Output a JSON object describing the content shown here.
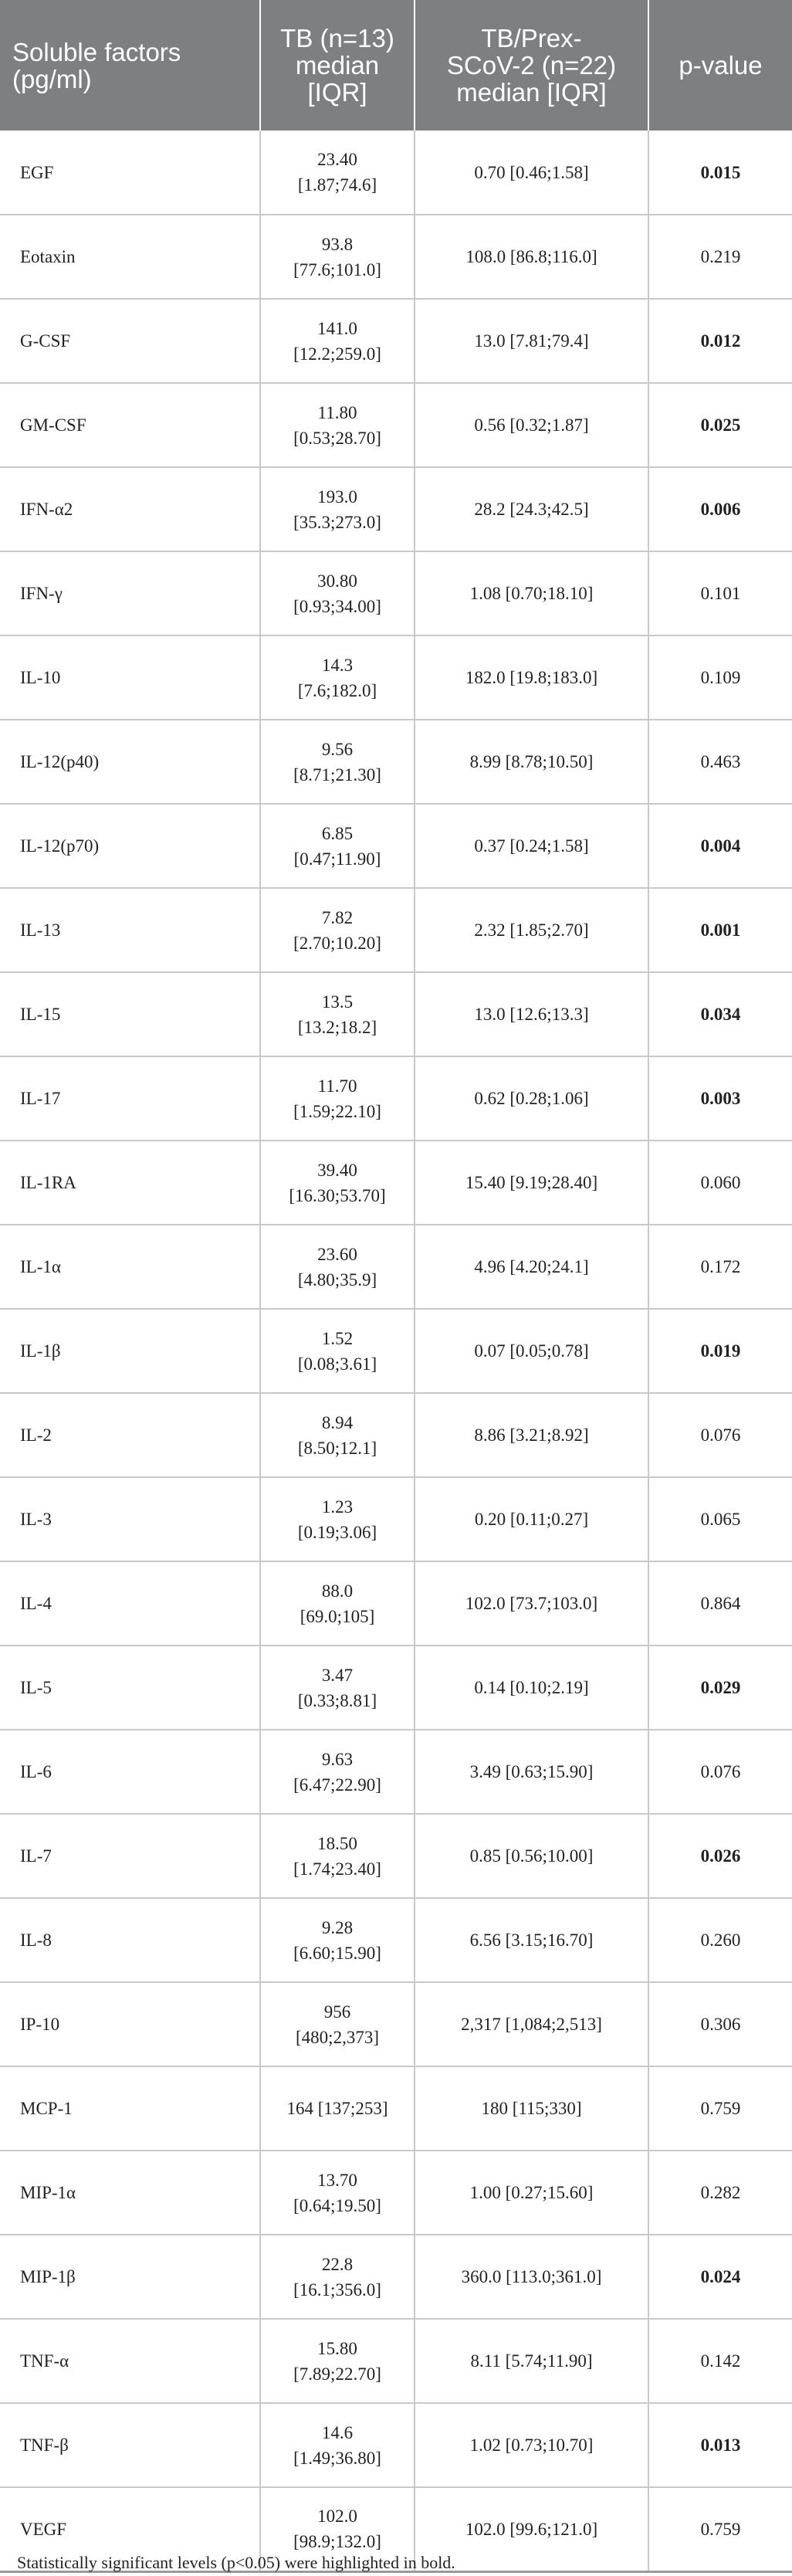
{
  "table": {
    "headers": {
      "factor": "Soluble factors\n(pg/ml)",
      "tb": "TB (n=13)\nmedian\n[IQR]",
      "tb_prex": "TB/Prex-\nSCoV-2 (n=22)\nmedian [IQR]",
      "pvalue": "p-value"
    },
    "rows": [
      {
        "factor": "EGF",
        "tb": "23.40\n[1.87;74.6]",
        "tb_prex": "0.70 [0.46;1.58]",
        "p": "0.015",
        "sig": true
      },
      {
        "factor": "Eotaxin",
        "tb": "93.8\n[77.6;101.0]",
        "tb_prex": "108.0 [86.8;116.0]",
        "p": "0.219",
        "sig": false
      },
      {
        "factor": "G-CSF",
        "tb": "141.0\n[12.2;259.0]",
        "tb_prex": "13.0 [7.81;79.4]",
        "p": "0.012",
        "sig": true
      },
      {
        "factor": "GM-CSF",
        "tb": "11.80\n[0.53;28.70]",
        "tb_prex": "0.56 [0.32;1.87]",
        "p": "0.025",
        "sig": true
      },
      {
        "factor": "IFN-α2",
        "tb": "193.0\n[35.3;273.0]",
        "tb_prex": "28.2 [24.3;42.5]",
        "p": "0.006",
        "sig": true
      },
      {
        "factor": "IFN-γ",
        "tb": "30.80\n[0.93;34.00]",
        "tb_prex": "1.08 [0.70;18.10]",
        "p": "0.101",
        "sig": false
      },
      {
        "factor": "IL-10",
        "tb": "14.3\n[7.6;182.0]",
        "tb_prex": "182.0 [19.8;183.0]",
        "p": "0.109",
        "sig": false
      },
      {
        "factor": "IL-12(p40)",
        "tb": "9.56\n[8.71;21.30]",
        "tb_prex": "8.99 [8.78;10.50]",
        "p": "0.463",
        "sig": false
      },
      {
        "factor": "IL-12(p70)",
        "tb": "6.85\n[0.47;11.90]",
        "tb_prex": "0.37 [0.24;1.58]",
        "p": "0.004",
        "sig": true
      },
      {
        "factor": "IL-13",
        "tb": "7.82\n[2.70;10.20]",
        "tb_prex": "2.32 [1.85;2.70]",
        "p": "0.001",
        "sig": true
      },
      {
        "factor": "IL-15",
        "tb": "13.5\n[13.2;18.2]",
        "tb_prex": "13.0 [12.6;13.3]",
        "p": "0.034",
        "sig": true
      },
      {
        "factor": "IL-17",
        "tb": "11.70\n[1.59;22.10]",
        "tb_prex": "0.62 [0.28;1.06]",
        "p": "0.003",
        "sig": true
      },
      {
        "factor": "IL-1RA",
        "tb": "39.40\n[16.30;53.70]",
        "tb_prex": "15.40 [9.19;28.40]",
        "p": "0.060",
        "sig": false
      },
      {
        "factor": "IL-1α",
        "tb": "23.60\n[4.80;35.9]",
        "tb_prex": "4.96 [4.20;24.1]",
        "p": "0.172",
        "sig": false
      },
      {
        "factor": "IL-1β",
        "tb": "1.52\n[0.08;3.61]",
        "tb_prex": "0.07 [0.05;0.78]",
        "p": "0.019",
        "sig": true
      },
      {
        "factor": "IL-2",
        "tb": "8.94\n[8.50;12.1]",
        "tb_prex": "8.86 [3.21;8.92]",
        "p": "0.076",
        "sig": false
      },
      {
        "factor": "IL-3",
        "tb": "1.23\n[0.19;3.06]",
        "tb_prex": "0.20 [0.11;0.27]",
        "p": "0.065",
        "sig": false
      },
      {
        "factor": "IL-4",
        "tb": "88.0\n[69.0;105]",
        "tb_prex": "102.0 [73.7;103.0]",
        "p": "0.864",
        "sig": false
      },
      {
        "factor": "IL-5",
        "tb": "3.47\n[0.33;8.81]",
        "tb_prex": "0.14 [0.10;2.19]",
        "p": "0.029",
        "sig": true
      },
      {
        "factor": "IL-6",
        "tb": "9.63\n[6.47;22.90]",
        "tb_prex": "3.49 [0.63;15.90]",
        "p": "0.076",
        "sig": false
      },
      {
        "factor": "IL-7",
        "tb": "18.50\n[1.74;23.40]",
        "tb_prex": "0.85 [0.56;10.00]",
        "p": "0.026",
        "sig": true
      },
      {
        "factor": "IL-8",
        "tb": "9.28\n[6.60;15.90]",
        "tb_prex": "6.56 [3.15;16.70]",
        "p": "0.260",
        "sig": false
      },
      {
        "factor": "IP-10",
        "tb": "956\n[480;2,373]",
        "tb_prex": "2,317 [1,084;2,513]",
        "p": "0.306",
        "sig": false
      },
      {
        "factor": "MCP-1",
        "tb": "164 [137;253]",
        "tb_prex": "180 [115;330]",
        "p": "0.759",
        "sig": false
      },
      {
        "factor": "MIP-1α",
        "tb": "13.70\n[0.64;19.50]",
        "tb_prex": "1.00 [0.27;15.60]",
        "p": "0.282",
        "sig": false
      },
      {
        "factor": "MIP-1β",
        "tb": "22.8\n[16.1;356.0]",
        "tb_prex": "360.0 [113.0;361.0]",
        "p": "0.024",
        "sig": true
      },
      {
        "factor": "TNF-α",
        "tb": "15.80\n[7.89;22.70]",
        "tb_prex": "8.11 [5.74;11.90]",
        "p": "0.142",
        "sig": false
      },
      {
        "factor": "TNF-β",
        "tb": "14.6\n[1.49;36.80]",
        "tb_prex": "1.02 [0.73;10.70]",
        "p": "0.013",
        "sig": true
      },
      {
        "factor": "VEGF",
        "tb": "102.0\n[98.9;132.0]",
        "tb_prex": "102.0 [99.6;121.0]",
        "p": "0.759",
        "sig": false
      }
    ]
  },
  "footnote": "Statistically significant levels (p<0.05) were highlighted in bold."
}
